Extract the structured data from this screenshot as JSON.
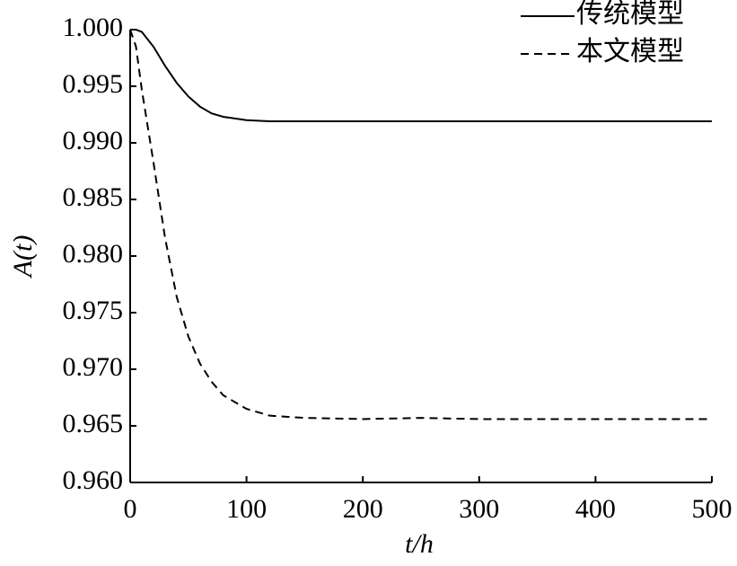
{
  "chart_data": {
    "type": "line",
    "xlabel": "t/h",
    "ylabel": "A(t)",
    "x": [
      0,
      5,
      10,
      20,
      30,
      40,
      50,
      60,
      70,
      80,
      100,
      120,
      150,
      200,
      250,
      300,
      400,
      500
    ],
    "series": [
      {
        "name": "传统模型",
        "color": "#000000",
        "dash": "solid",
        "values": [
          1.0,
          1.0,
          0.9998,
          0.9985,
          0.9968,
          0.9953,
          0.9941,
          0.9932,
          0.9926,
          0.9923,
          0.992,
          0.9919,
          0.9919,
          0.9919,
          0.9919,
          0.9919,
          0.9919,
          0.9919
        ]
      },
      {
        "name": "本文模型",
        "color": "#000000",
        "dash": "dashed",
        "values": [
          1.0,
          0.9985,
          0.9947,
          0.9883,
          0.9816,
          0.9764,
          0.9729,
          0.9705,
          0.9689,
          0.9677,
          0.9665,
          0.9659,
          0.9657,
          0.9656,
          0.9657,
          0.9656,
          0.9656,
          0.9656
        ]
      }
    ],
    "xlim": [
      0,
      500
    ],
    "xticks": [
      0,
      100,
      200,
      300,
      400,
      500
    ],
    "ylim": [
      0.96,
      1.0
    ],
    "yticks": [
      {
        "value": 0.96,
        "label": "0.960"
      },
      0.965,
      {
        "value": 0.97,
        "label": "0.970"
      },
      0.975,
      {
        "value": 0.98,
        "label": "0.980"
      },
      0.985,
      {
        "value": 0.99,
        "label": "0.990"
      },
      0.995,
      {
        "value": 1.0,
        "label": "1.000"
      }
    ],
    "grid": false,
    "legend": "upper right"
  }
}
